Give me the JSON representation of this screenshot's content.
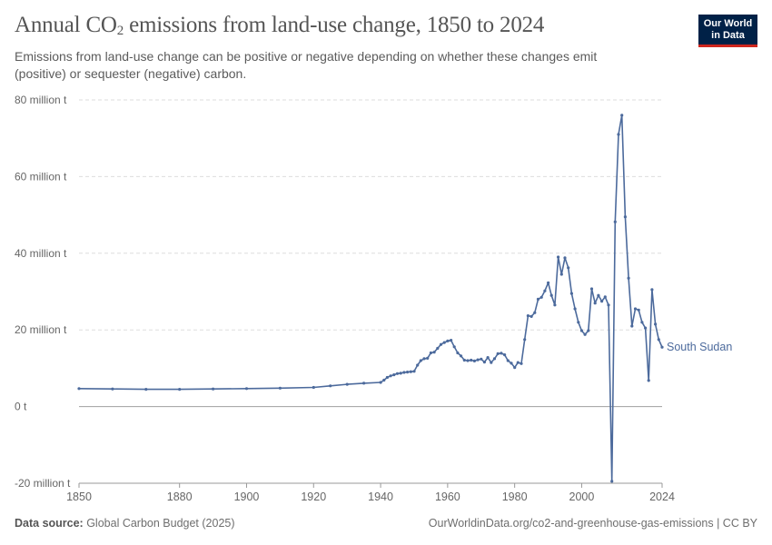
{
  "header": {
    "title_main": "Annual CO",
    "title_sub": "2",
    "title_rest": " emissions from land-use change, 1850 to 2024",
    "subtitle": "Emissions from land-use change can be positive or negative depending on whether these changes emit (positive) or sequester (negative) carbon."
  },
  "logo": {
    "line1": "Our World",
    "line2": "in Data"
  },
  "footer": {
    "source_label": "Data source:",
    "source_text": " Global Carbon Budget (2025)",
    "right_text": "OurWorldinData.org/co2-and-greenhouse-gas-emissions | CC BY"
  },
  "colors": {
    "series": "#4c6a9c",
    "grid": "#dddddd",
    "zero_line": "#a0a0a0",
    "logo_bg": "#002147",
    "logo_accent": "#ce261e"
  },
  "chart_data": {
    "type": "line",
    "ylim": [
      -20000000,
      80000000
    ],
    "xlim": [
      1850,
      2024
    ],
    "y_ticks": [
      {
        "value": -20000000,
        "label": "-20 million t"
      },
      {
        "value": 0,
        "label": "0 t"
      },
      {
        "value": 20000000,
        "label": "20 million t"
      },
      {
        "value": 40000000,
        "label": "40 million t"
      },
      {
        "value": 60000000,
        "label": "60 million t"
      },
      {
        "value": 80000000,
        "label": "80 million t"
      }
    ],
    "x_ticks": [
      {
        "value": 1850,
        "label": "1850"
      },
      {
        "value": 1880,
        "label": "1880"
      },
      {
        "value": 1900,
        "label": "1900"
      },
      {
        "value": 1920,
        "label": "1920"
      },
      {
        "value": 1940,
        "label": "1940"
      },
      {
        "value": 1960,
        "label": "1960"
      },
      {
        "value": 1980,
        "label": "1980"
      },
      {
        "value": 2000,
        "label": "2000"
      },
      {
        "value": 2024,
        "label": "2024"
      }
    ],
    "grid": true,
    "series": [
      {
        "name": "South Sudan",
        "points": [
          [
            1850,
            4.7
          ],
          [
            1860,
            4.6
          ],
          [
            1870,
            4.5
          ],
          [
            1880,
            4.5
          ],
          [
            1890,
            4.6
          ],
          [
            1900,
            4.7
          ],
          [
            1910,
            4.8
          ],
          [
            1920,
            5.0
          ],
          [
            1925,
            5.4
          ],
          [
            1930,
            5.8
          ],
          [
            1935,
            6.1
          ],
          [
            1940,
            6.3
          ],
          [
            1941,
            6.9
          ],
          [
            1942,
            7.6
          ],
          [
            1943,
            8.0
          ],
          [
            1944,
            8.3
          ],
          [
            1945,
            8.6
          ],
          [
            1946,
            8.7
          ],
          [
            1947,
            8.9
          ],
          [
            1948,
            9.0
          ],
          [
            1949,
            9.1
          ],
          [
            1950,
            9.2
          ],
          [
            1951,
            10.8
          ],
          [
            1952,
            12.0
          ],
          [
            1953,
            12.5
          ],
          [
            1954,
            12.6
          ],
          [
            1955,
            14.0
          ],
          [
            1956,
            14.2
          ],
          [
            1957,
            15.2
          ],
          [
            1958,
            16.2
          ],
          [
            1959,
            16.7
          ],
          [
            1960,
            17.1
          ],
          [
            1961,
            17.3
          ],
          [
            1962,
            15.6
          ],
          [
            1963,
            14.0
          ],
          [
            1964,
            13.2
          ],
          [
            1965,
            12.1
          ],
          [
            1966,
            12.0
          ],
          [
            1967,
            12.1
          ],
          [
            1968,
            11.9
          ],
          [
            1969,
            12.2
          ],
          [
            1970,
            12.4
          ],
          [
            1971,
            11.6
          ],
          [
            1972,
            12.8
          ],
          [
            1973,
            11.5
          ],
          [
            1974,
            12.5
          ],
          [
            1975,
            13.8
          ],
          [
            1976,
            13.9
          ],
          [
            1977,
            13.5
          ],
          [
            1978,
            12.0
          ],
          [
            1979,
            11.3
          ],
          [
            1980,
            10.2
          ],
          [
            1981,
            11.5
          ],
          [
            1982,
            11.2
          ],
          [
            1983,
            17.5
          ],
          [
            1984,
            23.7
          ],
          [
            1985,
            23.5
          ],
          [
            1986,
            24.5
          ],
          [
            1987,
            28.0
          ],
          [
            1988,
            28.5
          ],
          [
            1989,
            30.2
          ],
          [
            1990,
            32.3
          ],
          [
            1991,
            29.0
          ],
          [
            1992,
            26.5
          ],
          [
            1993,
            39.0
          ],
          [
            1994,
            34.5
          ],
          [
            1995,
            38.8
          ],
          [
            1996,
            36.2
          ],
          [
            1997,
            29.5
          ],
          [
            1998,
            25.5
          ],
          [
            1999,
            22.0
          ],
          [
            2000,
            19.8
          ],
          [
            2001,
            18.8
          ],
          [
            2002,
            19.8
          ],
          [
            2003,
            30.7
          ],
          [
            2004,
            27.0
          ],
          [
            2005,
            29.0
          ],
          [
            2006,
            27.5
          ],
          [
            2007,
            28.6
          ],
          [
            2008,
            26.5
          ],
          [
            2009,
            -19.5
          ],
          [
            2010,
            48.2
          ],
          [
            2011,
            71.0
          ],
          [
            2012,
            76.0
          ],
          [
            2013,
            49.5
          ],
          [
            2014,
            33.5
          ],
          [
            2015,
            21.0
          ],
          [
            2016,
            25.5
          ],
          [
            2017,
            25.2
          ],
          [
            2018,
            22.0
          ],
          [
            2019,
            20.5
          ],
          [
            2020,
            6.8
          ],
          [
            2021,
            30.5
          ],
          [
            2022,
            21.5
          ],
          [
            2023,
            17.5
          ],
          [
            2024,
            15.5
          ]
        ],
        "y_unit_multiplier": 1000000
      }
    ]
  }
}
